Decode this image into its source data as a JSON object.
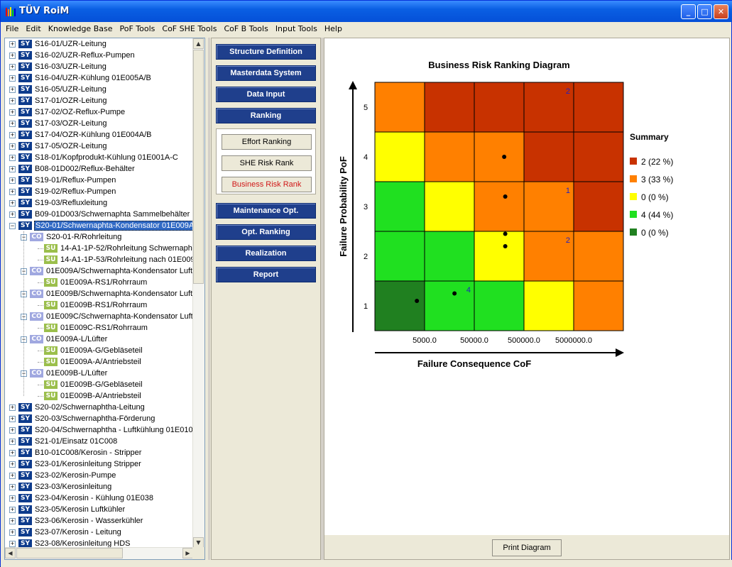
{
  "window": {
    "title": "TÜV RoiM",
    "minimize": "_",
    "maximize": "□",
    "close": "✕"
  },
  "menu": [
    "File",
    "Edit",
    "Knowledge Base",
    "PoF Tools",
    "CoF SHE Tools",
    "CoF B Tools",
    "Input Tools",
    "Help"
  ],
  "tree": [
    {
      "level": 0,
      "type": "SY",
      "label": "S16-01/UZR-Leitung",
      "expander": "+"
    },
    {
      "level": 0,
      "type": "SY",
      "label": "S16-02/UZR-Reflux-Pumpen",
      "expander": "+"
    },
    {
      "level": 0,
      "type": "SY",
      "label": "S16-03/UZR-Leitung",
      "expander": "+"
    },
    {
      "level": 0,
      "type": "SY",
      "label": "S16-04/UZR-Kühlung 01E005A/B",
      "expander": "+"
    },
    {
      "level": 0,
      "type": "SY",
      "label": "S16-05/UZR-Leitung",
      "expander": "+"
    },
    {
      "level": 0,
      "type": "SY",
      "label": "S17-01/OZR-Leitung",
      "expander": "+"
    },
    {
      "level": 0,
      "type": "SY",
      "label": "S17-02/OZ-Reflux-Pumpe",
      "expander": "+"
    },
    {
      "level": 0,
      "type": "SY",
      "label": "S17-03/OZR-Leitung",
      "expander": "+"
    },
    {
      "level": 0,
      "type": "SY",
      "label": "S17-04/OZR-Kühlung 01E004A/B",
      "expander": "+"
    },
    {
      "level": 0,
      "type": "SY",
      "label": "S17-05/OZR-Leitung",
      "expander": "+"
    },
    {
      "level": 0,
      "type": "SY",
      "label": "S18-01/Kopfprodukt-Kühlung 01E001A-C",
      "expander": "+"
    },
    {
      "level": 0,
      "type": "SY",
      "label": "B08-01D002/Reflux-Behälter",
      "expander": "+"
    },
    {
      "level": 0,
      "type": "SY",
      "label": "S19-01/Reflux-Pumpen",
      "expander": "+"
    },
    {
      "level": 0,
      "type": "SY",
      "label": "S19-02/Reflux-Pumpen",
      "expander": "+"
    },
    {
      "level": 0,
      "type": "SY",
      "label": "S19-03/Refluxleitung",
      "expander": "+"
    },
    {
      "level": 0,
      "type": "SY",
      "label": "B09-01D003/Schwernaphta Sammelbehälter",
      "expander": "+"
    },
    {
      "level": 0,
      "type": "SY",
      "label": "S20-01/Schwernaphta-Kondensator 01E009A",
      "expander": "−",
      "selected": true
    },
    {
      "level": 1,
      "type": "CO",
      "label": "S20-01-R/Rohrleitung",
      "expander": "−"
    },
    {
      "level": 2,
      "type": "SU",
      "label": "14-A1-1P-52/Rohrleitung Schwernaph"
    },
    {
      "level": 2,
      "type": "SU",
      "label": "14-A1-1P-53/Rohrleitung nach 01E009"
    },
    {
      "level": 1,
      "type": "CO",
      "label": "01E009A/Schwernaphta-Kondensator Luft",
      "expander": "−"
    },
    {
      "level": 2,
      "type": "SU",
      "label": "01E009A-RS1/Rohrraum"
    },
    {
      "level": 1,
      "type": "CO",
      "label": "01E009B/Schwernaphta-Kondensator Luft",
      "expander": "−"
    },
    {
      "level": 2,
      "type": "SU",
      "label": "01E009B-RS1/Rohrraum"
    },
    {
      "level": 1,
      "type": "CO",
      "label": "01E009C/Schwernaphta-Kondensator Luft",
      "expander": "−"
    },
    {
      "level": 2,
      "type": "SU",
      "label": "01E009C-RS1/Rohrraum"
    },
    {
      "level": 1,
      "type": "CO",
      "label": "01E009A-L/Lüfter",
      "expander": "−"
    },
    {
      "level": 2,
      "type": "SU",
      "label": "01E009A-G/Gebläseteil"
    },
    {
      "level": 2,
      "type": "SU",
      "label": "01E009A-A/Antriebsteil"
    },
    {
      "level": 1,
      "type": "CO",
      "label": "01E009B-L/Lüfter",
      "expander": "−"
    },
    {
      "level": 2,
      "type": "SU",
      "label": "01E009B-G/Gebläseteil"
    },
    {
      "level": 2,
      "type": "SU",
      "label": "01E009B-A/Antriebsteil"
    },
    {
      "level": 0,
      "type": "SY",
      "label": "S20-02/Schwernaphtha-Leitung",
      "expander": "+"
    },
    {
      "level": 0,
      "type": "SY",
      "label": "S20-03/Schwernaphtha-Förderung",
      "expander": "+"
    },
    {
      "level": 0,
      "type": "SY",
      "label": "S20-04/Schwernaphtha - Luftkühlung 01E010",
      "expander": "+"
    },
    {
      "level": 0,
      "type": "SY",
      "label": "S21-01/Einsatz 01C008",
      "expander": "+"
    },
    {
      "level": 0,
      "type": "SY",
      "label": "B10-01C008/Kerosin - Stripper",
      "expander": "+"
    },
    {
      "level": 0,
      "type": "SY",
      "label": "S23-01/Kerosinleitung Stripper",
      "expander": "+"
    },
    {
      "level": 0,
      "type": "SY",
      "label": "S23-02/Kerosin-Pumpe",
      "expander": "+"
    },
    {
      "level": 0,
      "type": "SY",
      "label": "S23-03/Kerosinleitung",
      "expander": "+"
    },
    {
      "level": 0,
      "type": "SY",
      "label": "S23-04/Kerosin - Kühlung 01E038",
      "expander": "+"
    },
    {
      "level": 0,
      "type": "SY",
      "label": "S23-05/Kerosin Luftkühler",
      "expander": "+"
    },
    {
      "level": 0,
      "type": "SY",
      "label": "S23-06/Kerosin - Wasserkühler",
      "expander": "+"
    },
    {
      "level": 0,
      "type": "SY",
      "label": "S23-07/Kerosin - Leitung",
      "expander": "+"
    },
    {
      "level": 0,
      "type": "SY",
      "label": "S23-08/Kerosinleitung HDS",
      "expander": "+"
    }
  ],
  "nav": {
    "structure": "Structure Definition",
    "masterdata": "Masterdata System",
    "data_input": "Data Input",
    "ranking": "Ranking",
    "effort": "Effort Ranking",
    "she": "SHE Risk Rank",
    "business": "Business Risk Rank",
    "maintenance": "Maintenance Opt.",
    "opt_ranking": "Opt. Ranking",
    "realization": "Realization",
    "report": "Report"
  },
  "footer": {
    "print": "Print Diagram"
  },
  "chart_data": {
    "type": "heatmap",
    "title": "Business Risk Ranking Diagram",
    "xlabel": "Failure Consequence CoF",
    "ylabel": "Failure Probability PoF",
    "x_ticks": [
      "5000.0",
      "50000.0",
      "500000.0",
      "5000000.0"
    ],
    "y_ticks": [
      "1",
      "2",
      "3",
      "4",
      "5"
    ],
    "colors": {
      "dark_red": "#c83200",
      "orange": "#ff8000",
      "yellow": "#ffff00",
      "light_green": "#20e020",
      "dark_green": "#208020"
    },
    "grid_rows_top_to_bottom": [
      [
        "orange",
        "dark_red",
        "dark_red",
        "dark_red",
        "dark_red"
      ],
      [
        "yellow",
        "orange",
        "orange",
        "dark_red",
        "dark_red"
      ],
      [
        "light_green",
        "yellow",
        "orange",
        "orange",
        "dark_red"
      ],
      [
        "light_green",
        "light_green",
        "yellow",
        "orange",
        "orange"
      ],
      [
        "dark_green",
        "light_green",
        "light_green",
        "yellow",
        "orange"
      ]
    ],
    "cell_counts": [
      {
        "pof": 5,
        "cof_col": 4,
        "count": "2"
      },
      {
        "pof": 3,
        "cof_col": 4,
        "count": "1"
      },
      {
        "pof": 2,
        "cof_col": 4,
        "count": "2"
      },
      {
        "pof": 1,
        "cof_col": 2,
        "count": "4"
      }
    ],
    "points": [
      {
        "pof": 4.0,
        "cof": 200000
      },
      {
        "pof": 3.2,
        "cof": 210000
      },
      {
        "pof": 2.45,
        "cof": 210000
      },
      {
        "pof": 2.2,
        "cof": 210000
      },
      {
        "pof": 1.1,
        "cof": 3500
      },
      {
        "pof": 1.25,
        "cof": 20000
      }
    ],
    "summary_title": "Summary",
    "summary": [
      {
        "color": "#c83200",
        "label": "2 (22 %)"
      },
      {
        "color": "#ff8000",
        "label": "3 (33 %)"
      },
      {
        "color": "#ffff00",
        "label": "0 (0 %)"
      },
      {
        "color": "#20e020",
        "label": "4 (44 %)"
      },
      {
        "color": "#208020",
        "label": "0 (0 %)"
      }
    ]
  }
}
